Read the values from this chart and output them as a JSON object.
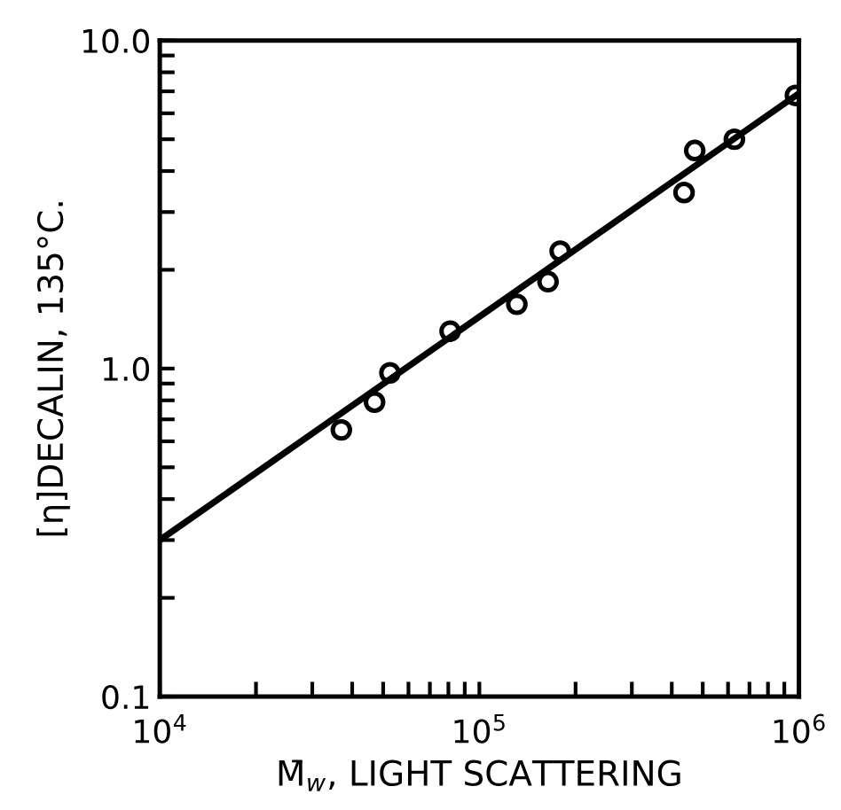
{
  "chart_data": {
    "type": "scatter",
    "xlabel": "M̄$_{w}$, LIGHT SCATTERING",
    "ylabel": "[η]DECALIN, 135°C.",
    "log": "xy",
    "grid": false,
    "legend": false,
    "xlim": [
      10000,
      1000000
    ],
    "ylim": [
      0.1,
      10
    ],
    "xticks": [
      {
        "value": 10000,
        "label": "10$^{4}$"
      },
      {
        "value": 20000,
        "label": null
      },
      {
        "value": 30000,
        "label": null
      },
      {
        "value": 40000,
        "label": null
      },
      {
        "value": 50000,
        "label": null
      },
      {
        "value": 60000,
        "label": null
      },
      {
        "value": 70000,
        "label": null
      },
      {
        "value": 80000,
        "label": null
      },
      {
        "value": 90000,
        "label": null
      },
      {
        "value": 100000,
        "label": "10$^{5}$"
      },
      {
        "value": 200000,
        "label": null
      },
      {
        "value": 300000,
        "label": null
      },
      {
        "value": 400000,
        "label": null
      },
      {
        "value": 500000,
        "label": null
      },
      {
        "value": 600000,
        "label": null
      },
      {
        "value": 700000,
        "label": null
      },
      {
        "value": 800000,
        "label": null
      },
      {
        "value": 900000,
        "label": null
      },
      {
        "value": 1000000,
        "label": "10$^{6}$"
      }
    ],
    "yticks": [
      {
        "value": 0.1,
        "label": "0.1"
      },
      {
        "value": 0.2,
        "label": null
      },
      {
        "value": 0.3,
        "label": null
      },
      {
        "value": 0.4,
        "label": null
      },
      {
        "value": 0.5,
        "label": null
      },
      {
        "value": 0.6,
        "label": null
      },
      {
        "value": 0.7,
        "label": null
      },
      {
        "value": 0.8,
        "label": null
      },
      {
        "value": 0.9,
        "label": null
      },
      {
        "value": 1,
        "label": "1.0"
      },
      {
        "value": 2,
        "label": null
      },
      {
        "value": 3,
        "label": null
      },
      {
        "value": 4,
        "label": null
      },
      {
        "value": 5,
        "label": null
      },
      {
        "value": 6,
        "label": null
      },
      {
        "value": 7,
        "label": null
      },
      {
        "value": 8,
        "label": null
      },
      {
        "value": 9,
        "label": null
      },
      {
        "value": 10,
        "label": "10.0"
      }
    ],
    "series": [
      {
        "marker": "circle",
        "color": "#000000",
        "x": [
          37000,
          47000,
          52500,
          81000,
          131000,
          164000,
          179000,
          437000,
          472000,
          628000,
          975000
        ],
        "values": [
          0.65,
          0.79,
          0.97,
          1.3,
          1.57,
          1.84,
          2.28,
          3.44,
          4.62,
          5.0,
          6.8
        ]
      },
      {
        "type": "line",
        "marker": "none",
        "line_style": "solid",
        "color": "#000000",
        "x": [
          10000,
          1000000
        ],
        "values": [
          0.3,
          6.9
        ]
      }
    ]
  }
}
